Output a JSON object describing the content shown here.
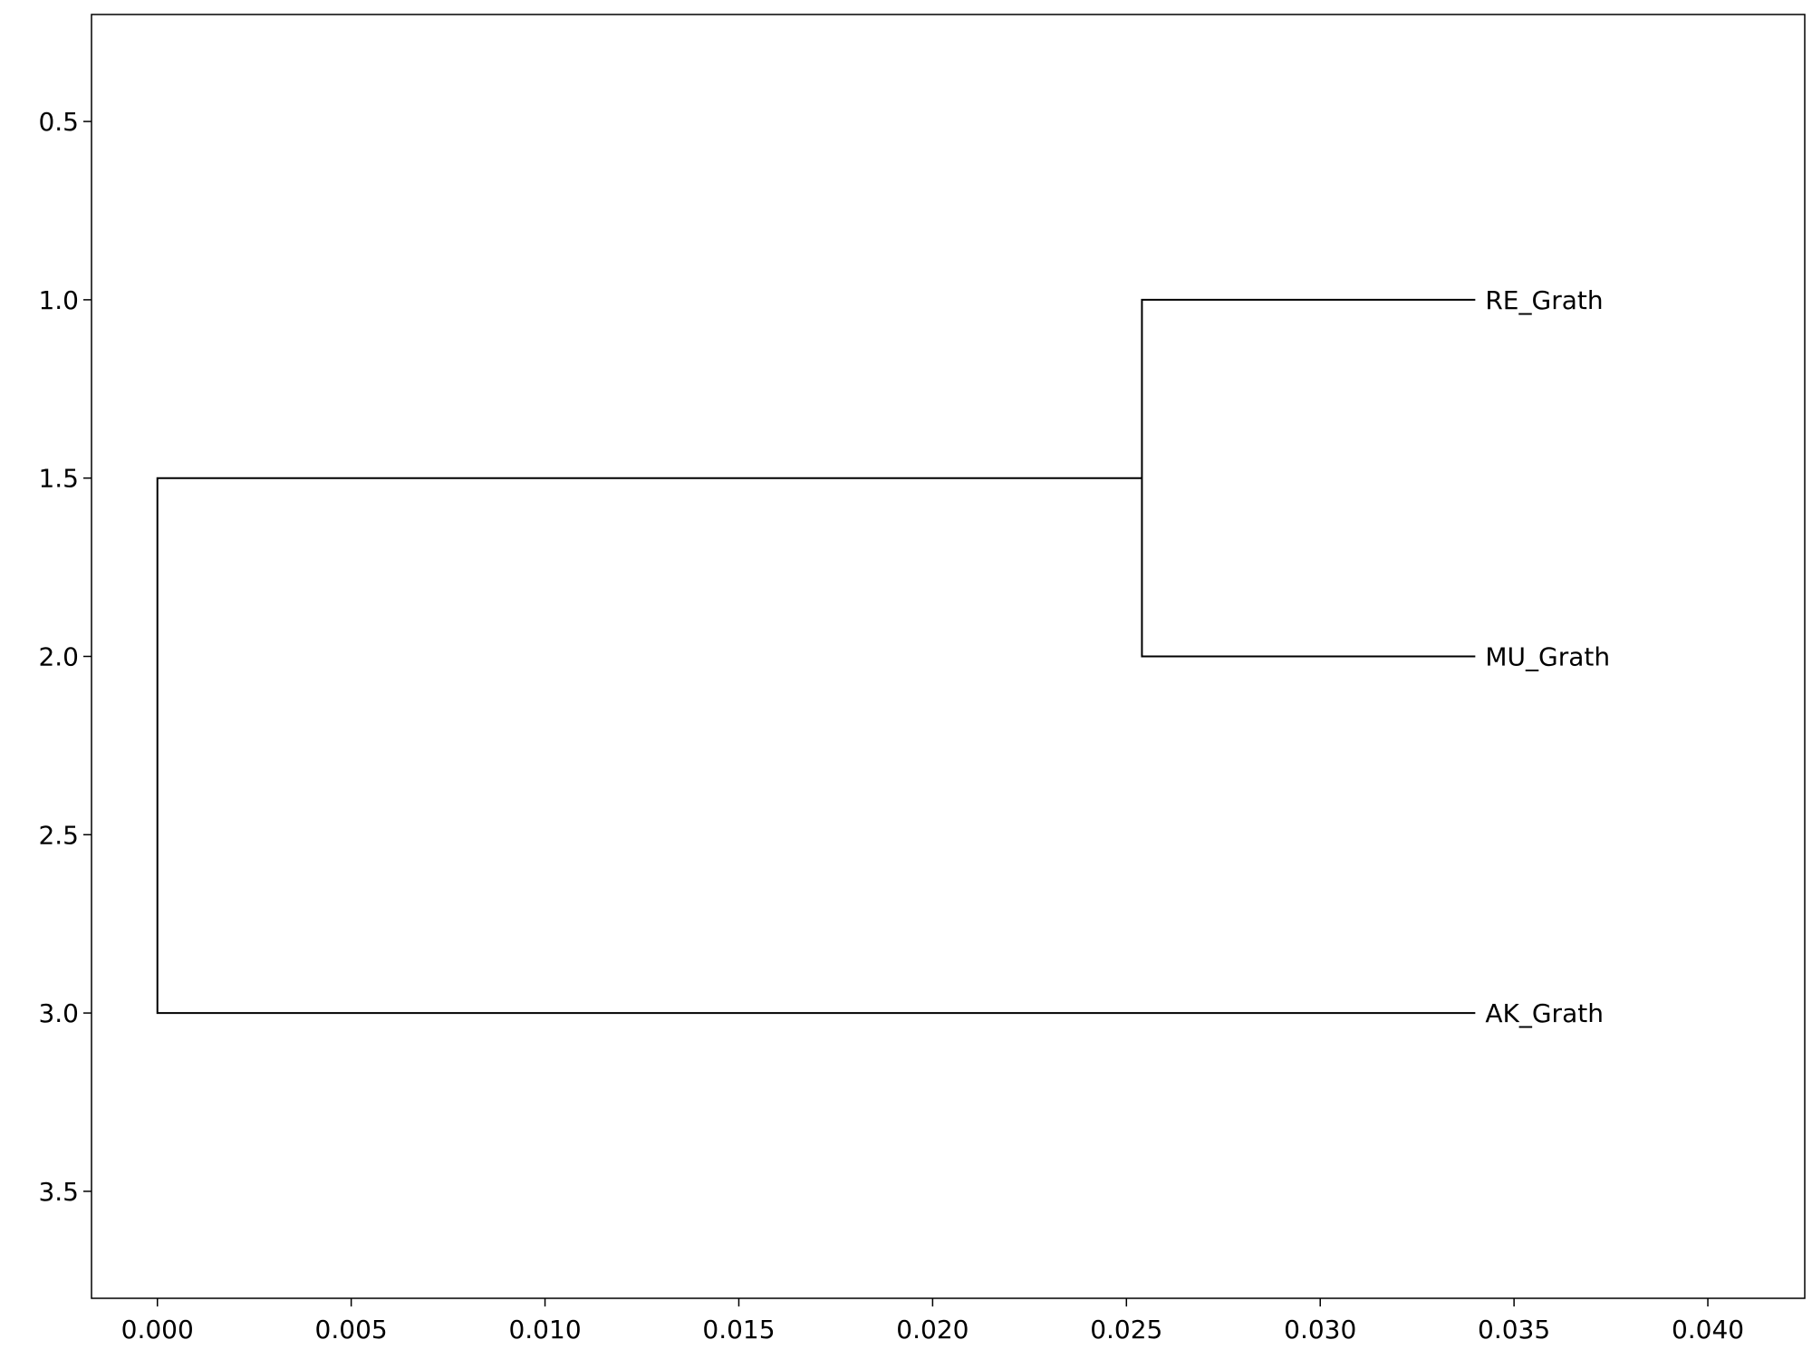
{
  "chart_data": {
    "type": "dendrogram",
    "orientation": "horizontal",
    "xlim": [
      -0.0017,
      0.0425
    ],
    "ylim": [
      3.8,
      0.2
    ],
    "x_ticks": [
      "0.000",
      "0.005",
      "0.010",
      "0.015",
      "0.020",
      "0.025",
      "0.030",
      "0.035",
      "0.040"
    ],
    "y_ticks": [
      "0.5",
      "1.0",
      "1.5",
      "2.0",
      "2.5",
      "3.0",
      "3.5"
    ],
    "leaves": [
      {
        "label": "RE_Grath",
        "y": 1.0,
        "x": 0.034
      },
      {
        "label": "MU_Grath",
        "y": 2.0,
        "x": 0.034
      },
      {
        "label": "AK_Grath",
        "y": 3.0,
        "x": 0.034
      }
    ],
    "merges": [
      {
        "children": [
          "RE_Grath",
          "MU_Grath"
        ],
        "x": 0.0254,
        "y": 1.5
      },
      {
        "children": [
          "RE_Grath+MU_Grath",
          "AK_Grath"
        ],
        "x": 0.0,
        "y": 2.25
      }
    ],
    "grid": false,
    "line_color": "#000000"
  }
}
